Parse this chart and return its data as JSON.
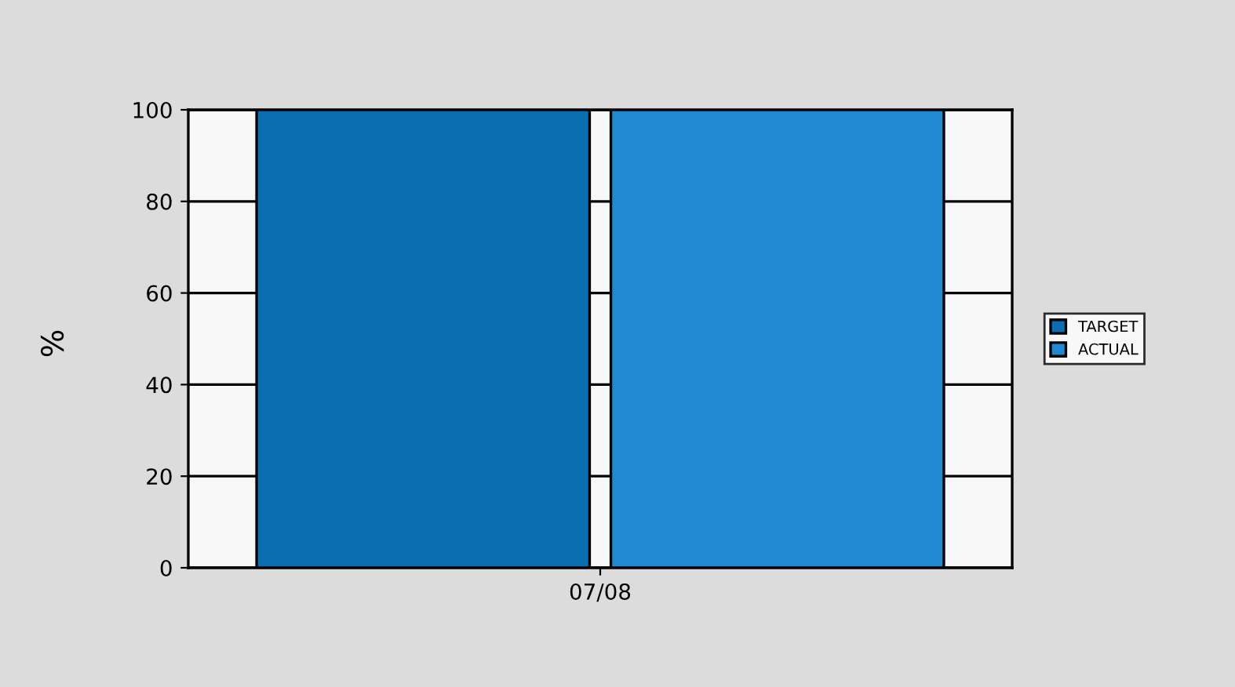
{
  "chart_data": {
    "type": "bar",
    "ylabel": "%",
    "categories": [
      "07/08"
    ],
    "series": [
      {
        "name": "TARGET",
        "color": "#0a6fb0",
        "values": [
          100
        ]
      },
      {
        "name": "ACTUAL",
        "color": "#1f8ad2",
        "values": [
          100
        ]
      }
    ],
    "ylim": [
      0,
      100
    ],
    "yticks": [
      0,
      20,
      40,
      60,
      80,
      100
    ],
    "grid": "y",
    "legend": "right"
  }
}
